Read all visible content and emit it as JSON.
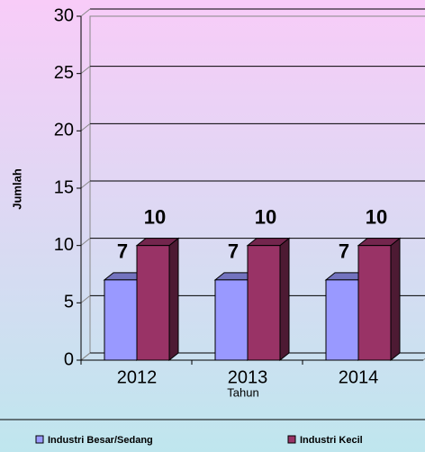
{
  "chart_data": {
    "type": "bar3d",
    "categories": [
      "2012",
      "2013",
      "2014"
    ],
    "series": [
      {
        "name": "Industri Besar/Sedang",
        "color": "#9999ff",
        "values": [
          7,
          7,
          7
        ]
      },
      {
        "name": "Industri Kecil",
        "color": "#993366",
        "values": [
          10,
          10,
          10
        ]
      }
    ],
    "ylim": [
      0,
      30
    ],
    "yticks": [
      0,
      5,
      10,
      15,
      20,
      25,
      30
    ],
    "y_label": "Jumlah",
    "x_label": "Tahun",
    "grid": true,
    "legend": "bottom"
  }
}
